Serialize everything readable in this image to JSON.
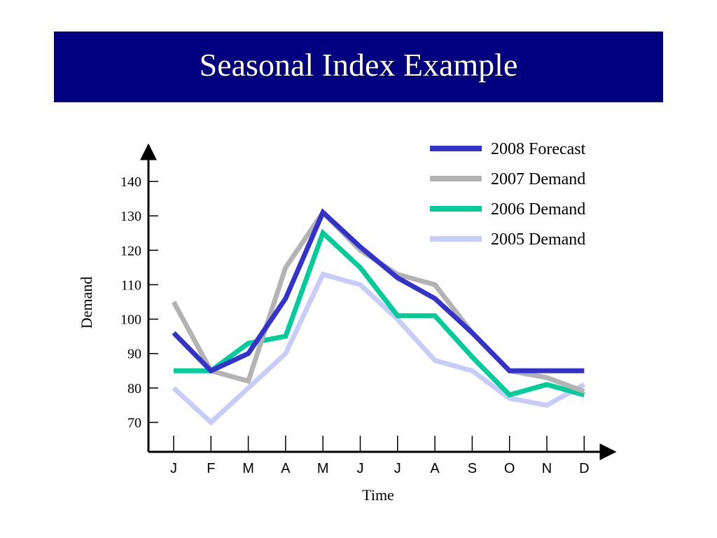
{
  "title": "Seasonal Index Example",
  "chart_data": {
    "type": "line",
    "ylabel": "Demand",
    "xlabel": "Time",
    "categories": [
      "J",
      "F",
      "M",
      "A",
      "M",
      "J",
      "J",
      "A",
      "S",
      "O",
      "N",
      "D"
    ],
    "yticks": [
      70,
      80,
      90,
      100,
      110,
      120,
      130,
      140
    ],
    "ylim": [
      62,
      151
    ],
    "legend_position": "top-right",
    "grid": false,
    "series": [
      {
        "name": "2005 Demand",
        "color": "#c8ccf8",
        "values": [
          80,
          70,
          80,
          90,
          113,
          110,
          100,
          88,
          85,
          77,
          75,
          81
        ]
      },
      {
        "name": "2006 Demand",
        "color": "#00cc99",
        "values": [
          85,
          85,
          93,
          95,
          125,
          115,
          101,
          101,
          89,
          78,
          81,
          78
        ]
      },
      {
        "name": "2007 Demand",
        "color": "#b3b3b3",
        "values": [
          105,
          85,
          82,
          115,
          131,
          120,
          113,
          110,
          96,
          85,
          83,
          79
        ]
      },
      {
        "name": "2008 Forecast",
        "color": "#3333cc",
        "values": [
          96,
          85,
          90,
          106,
          131,
          121,
          112,
          106,
          96,
          85,
          85,
          85
        ]
      }
    ],
    "legend_order": [
      "2008 Forecast",
      "2007 Demand",
      "2006 Demand",
      "2005 Demand"
    ]
  }
}
